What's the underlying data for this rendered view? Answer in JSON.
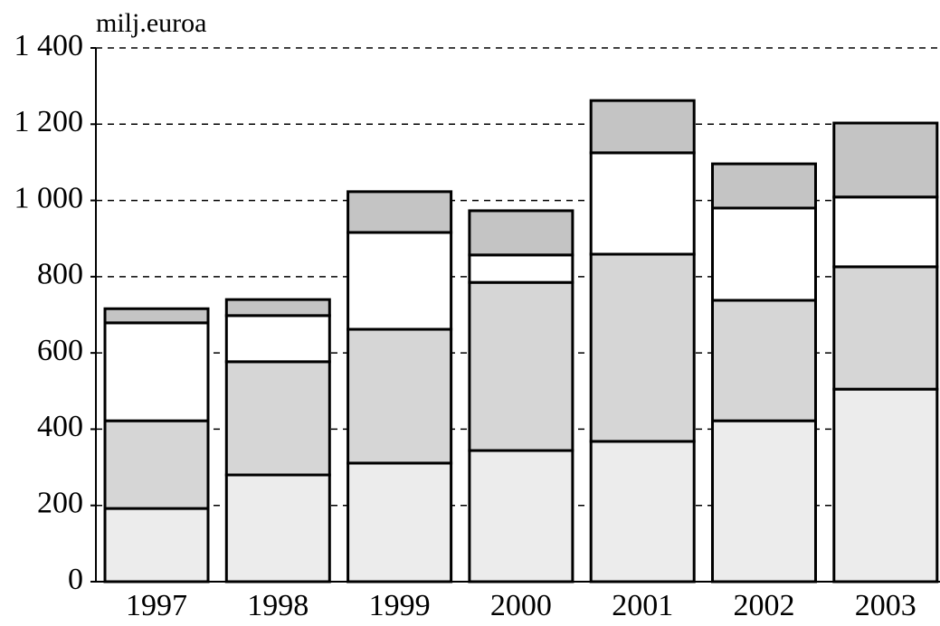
{
  "chart_data": {
    "type": "stacked_bar",
    "y_axis_label": "milj.euroa",
    "categories": [
      "1997",
      "1998",
      "1999",
      "2000",
      "2001",
      "2002",
      "2003"
    ],
    "series": [
      {
        "color": "#ececec",
        "values": [
          192,
          280,
          311,
          344,
          368,
          422,
          505
        ]
      },
      {
        "color": "#d6d6d6",
        "values": [
          230,
          297,
          351,
          441,
          491,
          316,
          321
        ]
      },
      {
        "color": "#ffffff",
        "values": [
          257,
          121,
          254,
          72,
          266,
          242,
          183
        ]
      },
      {
        "color": "#c4c4c4",
        "values": [
          37,
          42,
          107,
          116,
          137,
          116,
          194
        ]
      }
    ],
    "ylim": [
      0,
      1400
    ],
    "yticks": [
      0,
      200,
      400,
      600,
      800,
      {
        "value": 1000,
        "label": "1 000"
      },
      {
        "value": 1200,
        "label": "1 200"
      },
      {
        "value": 1400,
        "label": "1 400"
      }
    ],
    "grid": true
  }
}
